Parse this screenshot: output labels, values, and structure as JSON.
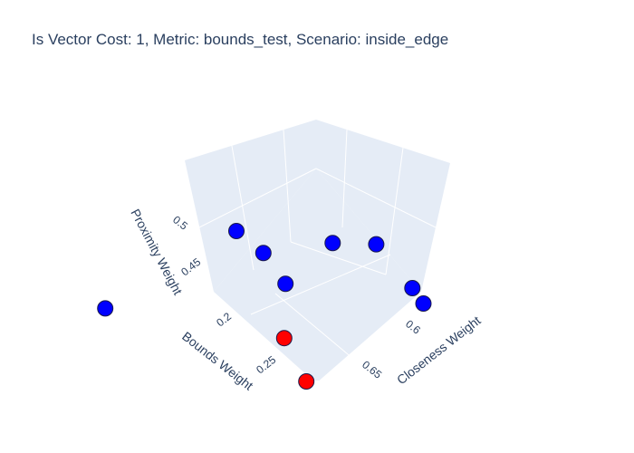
{
  "chart_data": {
    "type": "scatter3d",
    "title": "Is Vector Cost: 1, Metric: bounds_test, Scenario: inside_edge",
    "axes": {
      "x": {
        "label": "Bounds Weight",
        "ticks": [
          "0.2",
          "0.25"
        ]
      },
      "y": {
        "label": "Closeness Weight",
        "ticks": [
          "0.6",
          "0.65"
        ]
      },
      "z": {
        "label": "Proximity Weight",
        "ticks": [
          "0.45",
          "0.5"
        ]
      }
    },
    "marker_colors": {
      "standard": "#0000ff",
      "highlighted": "#ff0000"
    },
    "points": [
      {
        "bounds": 0.2,
        "closeness": 0.55,
        "proximity": 0.55,
        "color": "#0000ff"
      },
      {
        "bounds": 0.22,
        "closeness": 0.58,
        "proximity": 0.53,
        "color": "#0000ff"
      },
      {
        "bounds": 0.28,
        "closeness": 0.52,
        "proximity": 0.55,
        "color": "#0000ff"
      },
      {
        "bounds": 0.23,
        "closeness": 0.63,
        "proximity": 0.52,
        "color": "#0000ff"
      },
      {
        "bounds": 0.26,
        "closeness": 0.62,
        "proximity": 0.51,
        "color": "#0000ff"
      },
      {
        "bounds": 0.28,
        "closeness": 0.69,
        "proximity": 0.52,
        "color": "#0000ff"
      },
      {
        "bounds": 0.23,
        "closeness": 0.68,
        "proximity": 0.46,
        "color": "#0000ff"
      },
      {
        "bounds": 0.25,
        "closeness": 0.7,
        "proximity": 0.45,
        "color": "#0000ff"
      },
      {
        "bounds": 0.2,
        "closeness": 0.58,
        "proximity": 0.45,
        "color": "#ff0000"
      },
      {
        "bounds": 0.24,
        "closeness": 0.62,
        "proximity": 0.42,
        "color": "#ff0000"
      }
    ]
  }
}
